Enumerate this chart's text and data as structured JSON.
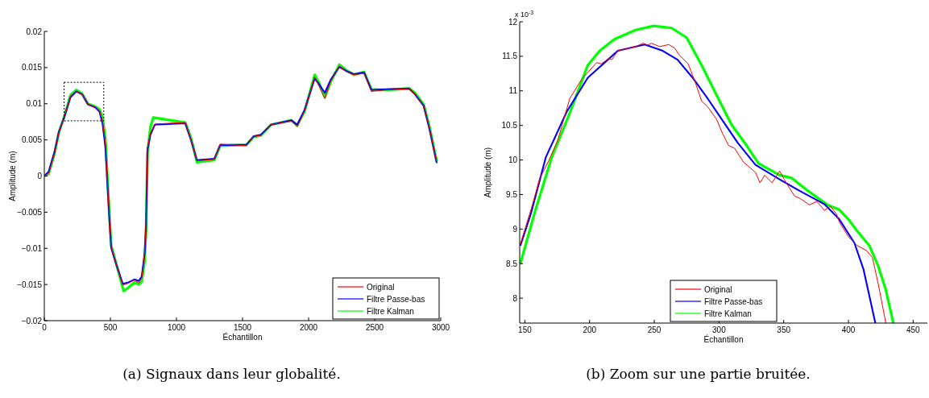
{
  "chart_data": [
    {
      "type": "line",
      "xlabel": "Échantillon",
      "ylabel": "Amplitude (m)",
      "xlim": [
        0,
        3000
      ],
      "xticks": [
        0,
        500,
        1000,
        1500,
        2000,
        2500,
        3000
      ],
      "ylim": [
        -0.02,
        0.02
      ],
      "yticks": [
        {
          "value": -0.02,
          "label": "−0.02"
        },
        {
          "value": -0.015,
          "label": "−0.015"
        },
        {
          "value": -0.01,
          "label": "−0.01"
        },
        {
          "value": -0.005,
          "label": "−0.005"
        },
        0,
        0.005,
        0.01,
        0.015,
        0.02
      ],
      "legend": "bottom right",
      "grid": false,
      "annotations": [
        "(a) Signaux dans leur globalité."
      ],
      "series": [
        {
          "name": "Original",
          "color": "#ff0000",
          "x": [
            0,
            33,
            77,
            110,
            154,
            198,
            242,
            286,
            330,
            385,
            418,
            440,
            462,
            484,
            495,
            506,
            539,
            594,
            638,
            682,
            715,
            737,
            759,
            770,
            781,
            803,
            836,
            1067,
            1111,
            1155,
            1287,
            1331,
            1529,
            1584,
            1639,
            1716,
            1870,
            1914,
            1969,
            2046,
            2079,
            2123,
            2167,
            2233,
            2288,
            2343,
            2420,
            2475,
            2585,
            2761,
            2805,
            2871,
            2915,
            2970
          ],
          "values": [
            0,
            0.0004,
            0.0031,
            0.006,
            0.0083,
            0.011,
            0.0117,
            0.0113,
            0.0099,
            0.0095,
            0.009,
            0.0076,
            0.0045,
            -0.003,
            -0.0066,
            -0.0098,
            -0.0119,
            -0.0151,
            -0.0148,
            -0.0144,
            -0.0148,
            -0.0141,
            -0.0105,
            -0.0062,
            0.0039,
            0.0059,
            0.0072,
            0.0074,
            0.0049,
            0.0021,
            0.0023,
            0.0044,
            0.0042,
            0.0055,
            0.0056,
            0.0071,
            0.0076,
            0.0068,
            0.009,
            0.0137,
            0.0124,
            0.0107,
            0.0131,
            0.0152,
            0.0144,
            0.014,
            0.0142,
            0.0117,
            0.0119,
            0.0121,
            0.0113,
            0.0097,
            0.0066,
            0.0019
          ]
        },
        {
          "name": "Filtre Passe-bas",
          "color": "#0000ff",
          "x": [
            0,
            33,
            77,
            110,
            154,
            198,
            242,
            286,
            330,
            385,
            418,
            440,
            462,
            484,
            495,
            506,
            539,
            594,
            638,
            682,
            715,
            737,
            759,
            770,
            781,
            803,
            836,
            1067,
            1111,
            1155,
            1287,
            1331,
            1529,
            1584,
            1639,
            1716,
            1870,
            1914,
            1969,
            2046,
            2079,
            2123,
            2167,
            2233,
            2288,
            2343,
            2420,
            2475,
            2585,
            2761,
            2805,
            2871,
            2915,
            2970
          ],
          "values": [
            0,
            0.0006,
            0.0033,
            0.0061,
            0.0083,
            0.0109,
            0.0117,
            0.0113,
            0.0099,
            0.0095,
            0.0089,
            0.0073,
            0.0041,
            -0.0032,
            -0.0067,
            -0.0099,
            -0.0119,
            -0.0149,
            -0.0147,
            -0.0143,
            -0.0145,
            -0.0139,
            -0.0107,
            -0.0067,
            0.0037,
            0.0057,
            0.0071,
            0.0073,
            0.0049,
            0.0022,
            0.0024,
            0.0043,
            0.0043,
            0.0055,
            0.0057,
            0.0071,
            0.0077,
            0.0071,
            0.0091,
            0.0135,
            0.0127,
            0.0115,
            0.0133,
            0.0151,
            0.0145,
            0.0141,
            0.0143,
            0.0119,
            0.012,
            0.0121,
            0.0113,
            0.0097,
            0.0065,
            0.0018
          ]
        },
        {
          "name": "Filtre Kalman",
          "color": "#00ff00",
          "x": [
            0,
            33,
            77,
            110,
            154,
            198,
            242,
            286,
            330,
            385,
            418,
            440,
            462,
            484,
            495,
            506,
            539,
            600,
            638,
            682,
            715,
            737,
            759,
            770,
            781,
            803,
            825,
            1067,
            1111,
            1155,
            1287,
            1331,
            1529,
            1584,
            1639,
            1716,
            1870,
            1914,
            1969,
            2046,
            2079,
            2123,
            2167,
            2233,
            2288,
            2343,
            2420,
            2475,
            2585,
            2761,
            2805,
            2871,
            2915,
            2970
          ],
          "values": [
            0,
            0.0003,
            0.0031,
            0.006,
            0.0084,
            0.0112,
            0.0119,
            0.0114,
            0.01,
            0.0096,
            0.0092,
            0.0082,
            0.0052,
            -0.0025,
            -0.0062,
            -0.0096,
            -0.0118,
            -0.0159,
            -0.0154,
            -0.0147,
            -0.015,
            -0.0146,
            -0.0118,
            -0.0075,
            0.0032,
            0.0068,
            0.0081,
            0.0074,
            0.0052,
            0.0019,
            0.0022,
            0.0042,
            0.0043,
            0.0054,
            0.0056,
            0.0071,
            0.0077,
            0.007,
            0.0089,
            0.014,
            0.0129,
            0.0109,
            0.013,
            0.0154,
            0.0146,
            0.014,
            0.0144,
            0.012,
            0.0119,
            0.0121,
            0.0115,
            0.0099,
            0.0068,
            0.002
          ]
        }
      ]
    },
    {
      "type": "line",
      "xlabel": "Échantillon",
      "ylabel": "Amplitude (m)",
      "xlim": [
        146,
        461
      ],
      "xticks": [
        150,
        200,
        250,
        300,
        350,
        400,
        450
      ],
      "ylim": [
        7.64,
        12
      ],
      "yticks": [
        8,
        8.5,
        9,
        9.5,
        10,
        10.5,
        11,
        11.5,
        12
      ],
      "legend": "bottom",
      "grid": false,
      "annotations": [
        "x 10$^{-3}$",
        "(b) Zoom sur une partie bruitée."
      ],
      "series": [
        {
          "name": "Original",
          "color": "#ff0000",
          "x": [
            146.5,
            155.8,
            161.6,
            168.5,
            175.5,
            184.7,
            194,
            205.5,
            209,
            214.8,
            217.1,
            221.8,
            235.6,
            241.4,
            244.9,
            247.7,
            254.2,
            261.1,
            265.7,
            269.2,
            276.2,
            281.9,
            286.6,
            291.2,
            298.1,
            302.8,
            307.4,
            312,
            318.9,
            328.2,
            331.7,
            335.2,
            341,
            346.8,
            352.5,
            358.3,
            363,
            369.9,
            375.6,
            381.5,
            386.1,
            390.7,
            393,
            400,
            406.9,
            413.9,
            418.5,
            423.1,
            428.9
          ],
          "values": [
            8.78,
            9.35,
            9.74,
            9.99,
            10.29,
            10.89,
            11.17,
            11.41,
            11.39,
            11.47,
            11.45,
            11.58,
            11.64,
            11.69,
            11.66,
            11.69,
            11.64,
            11.67,
            11.62,
            11.52,
            11.39,
            11.11,
            10.85,
            10.77,
            10.59,
            10.38,
            10.21,
            10.17,
            9.97,
            9.82,
            9.67,
            9.78,
            9.67,
            9.84,
            9.65,
            9.48,
            9.44,
            9.35,
            9.4,
            9.27,
            9.33,
            9.22,
            9.1,
            8.89,
            8.76,
            8.69,
            8.59,
            8.2,
            7.64
          ]
        },
        {
          "name": "Filtre Passe-bas",
          "color": "#0000ff",
          "x": [
            146.5,
            154.6,
            166.2,
            182.4,
            198.6,
            221.8,
            242.6,
            256.5,
            268,
            279.6,
            291.2,
            305,
            314.4,
            328.2,
            346.8,
            360.6,
            381.5,
            393,
            404.6,
            411.6,
            420.8
          ],
          "values": [
            8.76,
            9.22,
            10.04,
            10.7,
            11.19,
            11.58,
            11.67,
            11.58,
            11.45,
            11.19,
            10.89,
            10.51,
            10.25,
            9.93,
            9.72,
            9.57,
            9.36,
            9.14,
            8.8,
            8.42,
            7.64
          ]
        },
        {
          "name": "Filtre Kalman",
          "color": "#00ff00",
          "x": [
            146.5,
            158.1,
            170.8,
            184.7,
            198.6,
            207.8,
            219.4,
            235.6,
            249.5,
            263.4,
            275,
            286.6,
            298.1,
            309.7,
            321.3,
            330.6,
            346.8,
            356,
            367.6,
            383.8,
            393,
            400,
            406.9,
            416.2,
            423.1,
            428.9,
            434.7
          ],
          "values": [
            8.5,
            9.27,
            10.04,
            10.68,
            11.37,
            11.58,
            11.75,
            11.88,
            11.94,
            11.91,
            11.77,
            11.37,
            10.94,
            10.51,
            10.21,
            9.95,
            9.78,
            9.74,
            9.57,
            9.35,
            9.28,
            9.14,
            8.97,
            8.76,
            8.46,
            8.12,
            7.64
          ]
        }
      ]
    }
  ]
}
